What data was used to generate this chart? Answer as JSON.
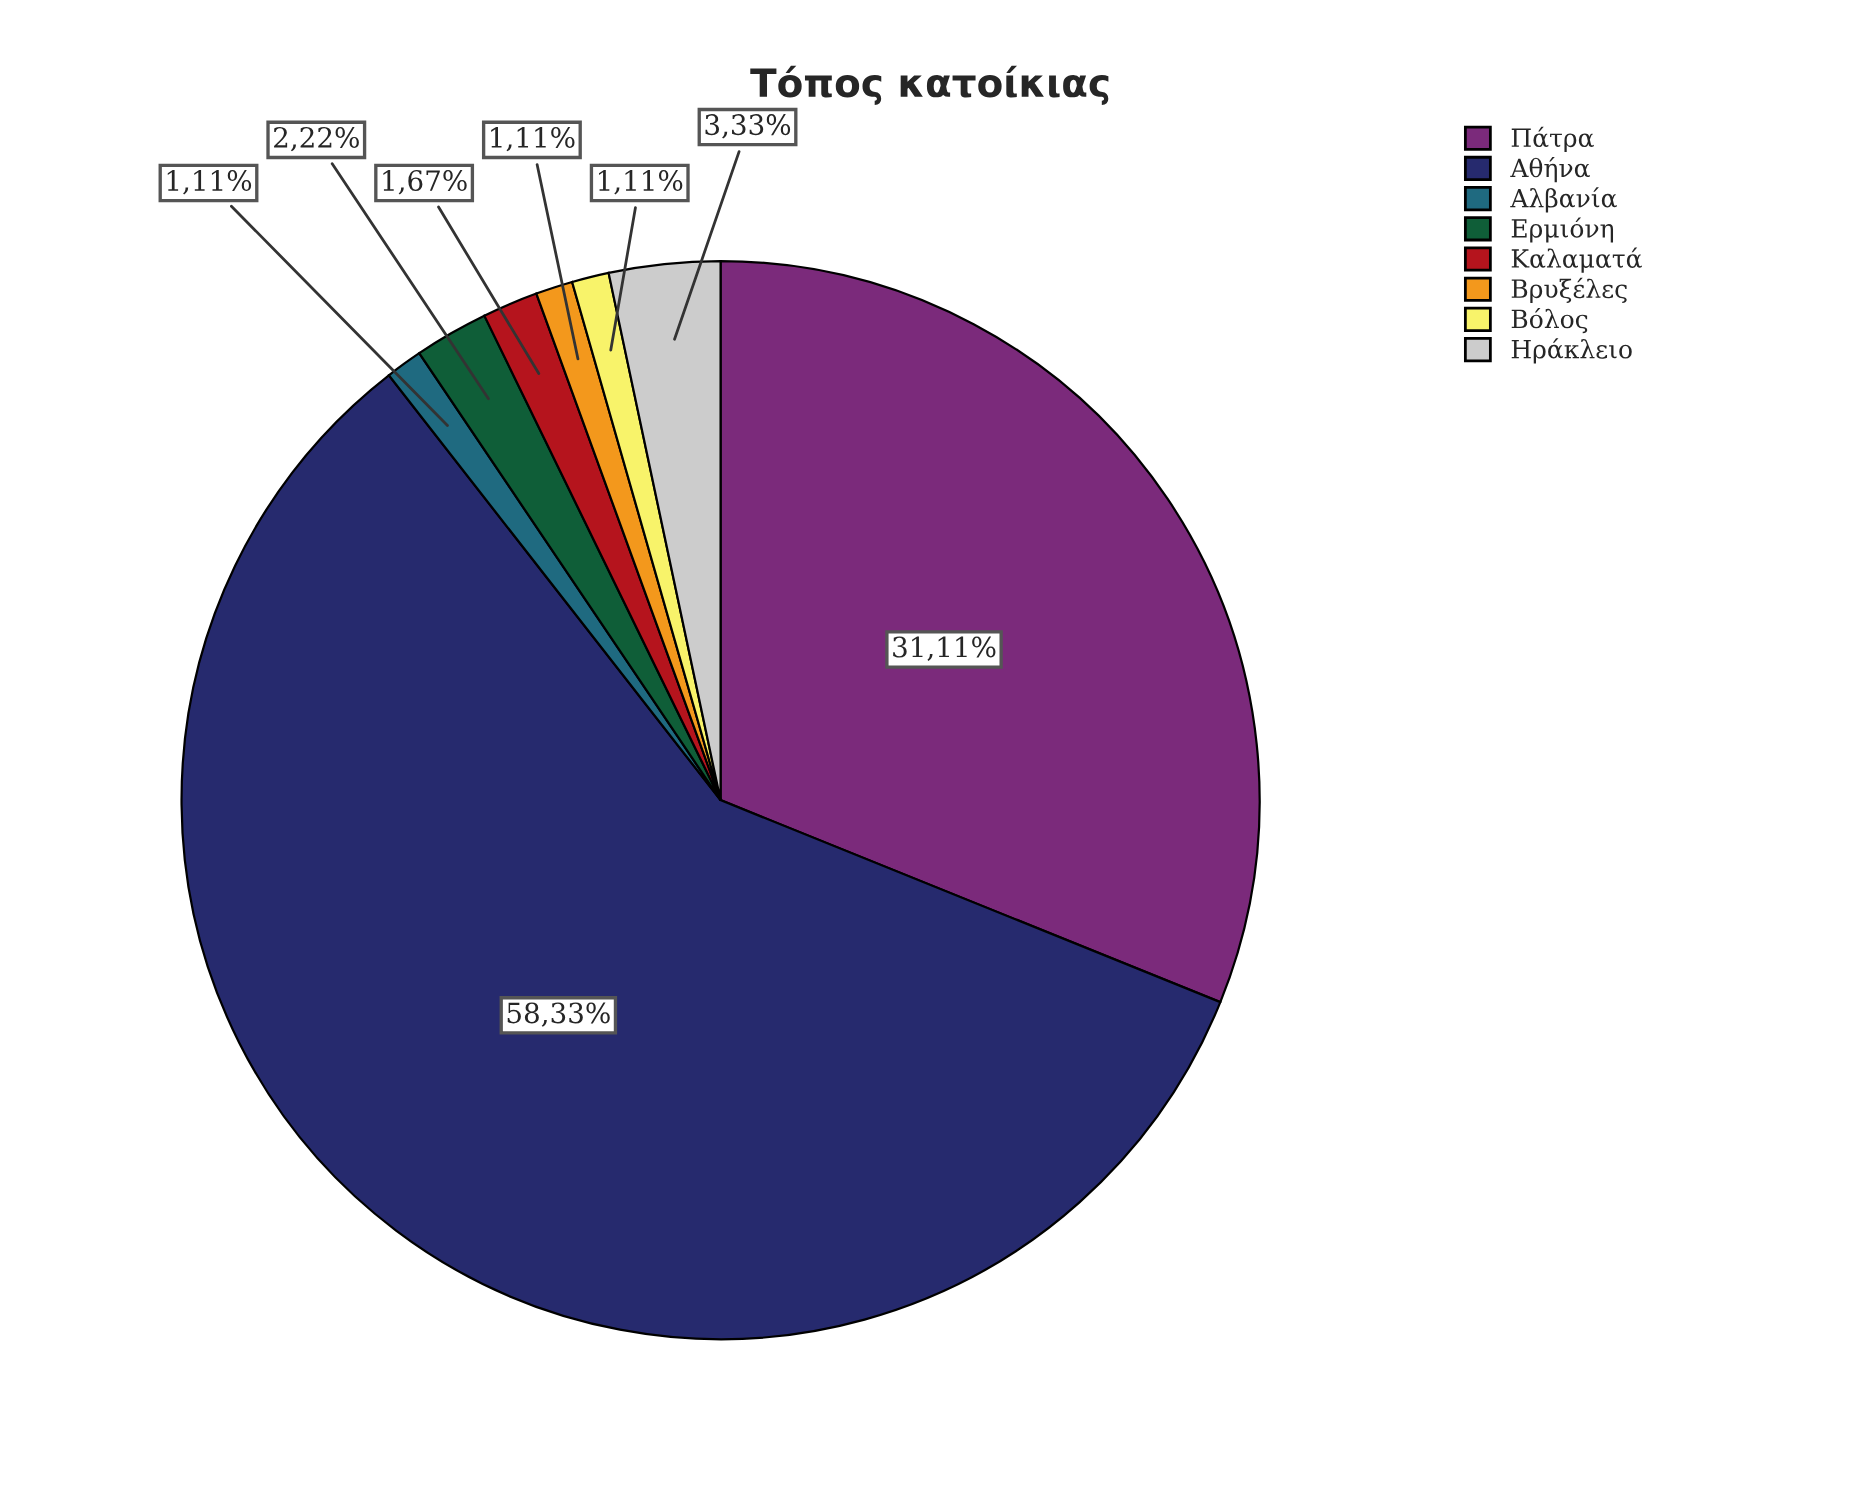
{
  "chart_data": {
    "type": "pie",
    "title": "Τόπος κατοίκιας",
    "categories": [
      "Πάτρα",
      "Αθήνα",
      "Αλβανία",
      "Ερμιόνη",
      "Καλαματά",
      "Βρυξέλες",
      "Βόλος",
      "Ηράκλειο"
    ],
    "values": [
      31.11,
      58.33,
      1.11,
      2.22,
      1.67,
      1.11,
      1.11,
      3.33
    ],
    "colors": [
      "#7b2a7b",
      "#262a6e",
      "#1f6a80",
      "#0f5e38",
      "#b5141d",
      "#f3981c",
      "#f8f36a",
      "#cccccc"
    ],
    "value_labels": [
      "31,11%",
      "58,33%",
      "1,11%",
      "2,22%",
      "1,67%",
      "1,11%",
      "1,11%",
      "3,33%"
    ],
    "legend": "top right"
  }
}
